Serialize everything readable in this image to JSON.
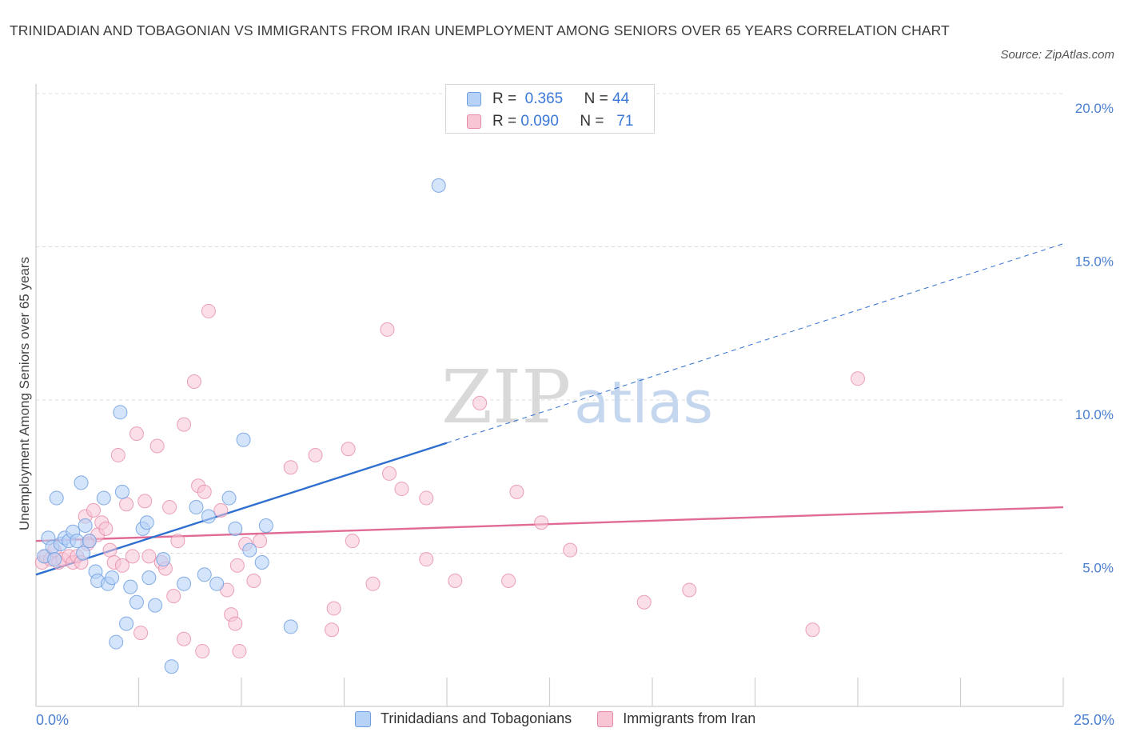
{
  "header": {
    "title": "TRINIDADIAN AND TOBAGONIAN VS IMMIGRANTS FROM IRAN UNEMPLOYMENT AMONG SENIORS OVER 65 YEARS CORRELATION CHART",
    "source": "Source: ZipAtlas.com"
  },
  "watermark": {
    "zip": "ZIP",
    "atlas": "atlas"
  },
  "legend": {
    "row1": {
      "r_label": "R =",
      "r_value": "0.365",
      "n_label": "N =",
      "n_value": "44"
    },
    "row2": {
      "r_label": "R =",
      "r_value": "0.090",
      "n_label": "N =",
      "n_value": "71"
    }
  },
  "colors": {
    "blue_fill": "#b7d2f7",
    "blue_stroke": "#6f9fe0",
    "blue_line": "#2f6fd0",
    "pink_fill": "#f8c5d5",
    "pink_stroke": "#e68ba7",
    "pink_line": "#e06b96",
    "grid": "#dddddd",
    "axis": "#cccccc"
  },
  "chart_data": {
    "type": "scatter",
    "title": "TRINIDADIAN AND TOBAGONIAN VS IMMIGRANTS FROM IRAN UNEMPLOYMENT AMONG SENIORS OVER 65 YEARS CORRELATION CHART",
    "xlabel": "",
    "ylabel": "Unemployment Among Seniors over 65 years",
    "xlim": [
      0,
      25
    ],
    "ylim": [
      0,
      20
    ],
    "x_tick_labels": [
      "0.0%",
      "25.0%"
    ],
    "y_ticks": [
      5,
      10,
      15,
      20
    ],
    "y_tick_labels": [
      "5.0%",
      "10.0%",
      "15.0%",
      "20.0%"
    ],
    "grid": true,
    "legend_position": "bottom",
    "series": [
      {
        "name": "Trinidadians and Tobagonians",
        "R": 0.365,
        "N": 44,
        "trend": {
          "x0": 0,
          "y0": 4.3,
          "x1": 10,
          "y1": 8.6,
          "extend_to": 25,
          "extended_y": 15.1
        },
        "points": [
          [
            0.2,
            4.9
          ],
          [
            0.3,
            5.5
          ],
          [
            0.4,
            5.2
          ],
          [
            0.45,
            4.8
          ],
          [
            0.5,
            6.8
          ],
          [
            0.6,
            5.3
          ],
          [
            0.7,
            5.5
          ],
          [
            0.8,
            5.4
          ],
          [
            0.9,
            5.7
          ],
          [
            1.0,
            5.4
          ],
          [
            1.1,
            7.3
          ],
          [
            1.15,
            5.0
          ],
          [
            1.2,
            5.9
          ],
          [
            1.3,
            5.4
          ],
          [
            1.45,
            4.4
          ],
          [
            1.5,
            4.1
          ],
          [
            1.65,
            6.8
          ],
          [
            1.75,
            4.0
          ],
          [
            1.85,
            4.2
          ],
          [
            1.95,
            2.1
          ],
          [
            2.05,
            9.6
          ],
          [
            2.1,
            7.0
          ],
          [
            2.2,
            2.7
          ],
          [
            2.3,
            3.9
          ],
          [
            2.45,
            3.4
          ],
          [
            2.6,
            5.8
          ],
          [
            2.7,
            6.0
          ],
          [
            2.75,
            4.2
          ],
          [
            2.9,
            3.3
          ],
          [
            3.1,
            4.8
          ],
          [
            3.3,
            1.3
          ],
          [
            3.6,
            4.0
          ],
          [
            3.9,
            6.5
          ],
          [
            4.1,
            4.3
          ],
          [
            4.2,
            6.2
          ],
          [
            4.4,
            4.0
          ],
          [
            4.7,
            6.8
          ],
          [
            4.85,
            5.8
          ],
          [
            5.05,
            8.7
          ],
          [
            5.2,
            5.1
          ],
          [
            5.5,
            4.7
          ],
          [
            5.6,
            5.9
          ],
          [
            6.2,
            2.6
          ],
          [
            9.8,
            17.0
          ]
        ]
      },
      {
        "name": "Immigrants from Iran",
        "R": 0.09,
        "N": 71,
        "trend": {
          "x0": 0,
          "y0": 5.4,
          "x1": 25,
          "y1": 6.5
        },
        "points": [
          [
            0.15,
            4.7
          ],
          [
            0.25,
            4.9
          ],
          [
            0.35,
            4.8
          ],
          [
            0.45,
            5.1
          ],
          [
            0.55,
            4.7
          ],
          [
            0.65,
            4.8
          ],
          [
            0.8,
            4.9
          ],
          [
            0.9,
            4.7
          ],
          [
            1.0,
            4.9
          ],
          [
            1.1,
            4.7
          ],
          [
            1.2,
            6.2
          ],
          [
            1.3,
            5.4
          ],
          [
            1.4,
            6.4
          ],
          [
            1.5,
            5.6
          ],
          [
            1.6,
            6.0
          ],
          [
            1.7,
            5.8
          ],
          [
            1.8,
            5.1
          ],
          [
            1.9,
            4.7
          ],
          [
            2.0,
            8.2
          ],
          [
            2.1,
            4.6
          ],
          [
            2.2,
            6.6
          ],
          [
            2.35,
            4.9
          ],
          [
            2.45,
            8.9
          ],
          [
            2.55,
            2.4
          ],
          [
            2.65,
            6.7
          ],
          [
            2.75,
            4.9
          ],
          [
            2.95,
            8.5
          ],
          [
            3.05,
            4.7
          ],
          [
            3.15,
            4.5
          ],
          [
            3.25,
            6.5
          ],
          [
            3.35,
            3.6
          ],
          [
            3.45,
            5.4
          ],
          [
            3.6,
            2.2
          ],
          [
            3.6,
            9.2
          ],
          [
            3.85,
            10.6
          ],
          [
            3.95,
            7.2
          ],
          [
            4.05,
            1.8
          ],
          [
            4.1,
            7.0
          ],
          [
            4.2,
            12.9
          ],
          [
            4.5,
            6.4
          ],
          [
            4.65,
            3.8
          ],
          [
            4.75,
            3.0
          ],
          [
            4.85,
            2.7
          ],
          [
            4.9,
            4.6
          ],
          [
            4.95,
            1.8
          ],
          [
            5.1,
            5.3
          ],
          [
            5.3,
            4.1
          ],
          [
            5.45,
            5.4
          ],
          [
            6.2,
            7.8
          ],
          [
            6.8,
            8.2
          ],
          [
            7.2,
            2.5
          ],
          [
            7.25,
            3.2
          ],
          [
            7.6,
            8.4
          ],
          [
            7.7,
            5.4
          ],
          [
            8.2,
            4.0
          ],
          [
            8.55,
            12.3
          ],
          [
            8.6,
            7.6
          ],
          [
            8.9,
            7.1
          ],
          [
            9.5,
            4.8
          ],
          [
            9.5,
            6.8
          ],
          [
            10.2,
            4.1
          ],
          [
            10.8,
            9.9
          ],
          [
            11.5,
            4.1
          ],
          [
            11.7,
            7.0
          ],
          [
            12.3,
            6.0
          ],
          [
            13.0,
            5.1
          ],
          [
            14.8,
            3.4
          ],
          [
            15.9,
            3.8
          ],
          [
            18.9,
            2.5
          ],
          [
            20.0,
            10.7
          ],
          [
            1.25,
            5.3
          ]
        ]
      }
    ]
  },
  "bottom_legend": {
    "series1": "Trinidadians and Tobagonians",
    "series2": "Immigrants from Iran"
  },
  "x_axis": {
    "min_label": "0.0%",
    "max_label": "25.0%"
  }
}
